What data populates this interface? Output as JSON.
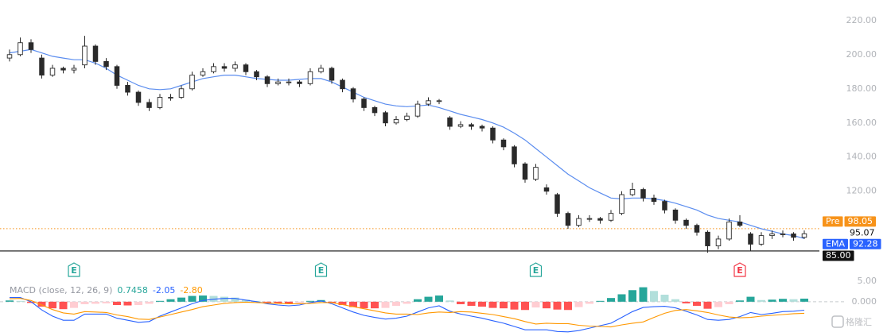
{
  "chart_data": [
    {
      "type": "candlestick",
      "ohlc": [
        [
          198,
          203,
          196,
          200
        ],
        [
          200,
          210,
          199,
          207
        ],
        [
          207,
          209,
          201,
          203
        ],
        [
          198,
          200,
          186,
          188
        ],
        [
          188,
          194,
          187,
          192
        ],
        [
          192,
          193,
          189,
          191
        ],
        [
          191,
          194,
          189,
          192
        ],
        [
          194,
          211,
          192,
          205
        ],
        [
          205,
          206,
          194,
          196
        ],
        [
          196,
          198,
          191,
          193
        ],
        [
          193,
          194,
          180,
          182
        ],
        [
          182,
          184,
          176,
          178
        ],
        [
          178,
          179,
          170,
          172
        ],
        [
          172,
          174,
          167,
          169
        ],
        [
          169,
          177,
          168,
          175
        ],
        [
          175,
          177,
          173,
          175
        ],
        [
          175,
          182,
          174,
          180
        ],
        [
          180,
          190,
          179,
          188
        ],
        [
          188,
          192,
          187,
          190
        ],
        [
          190,
          195,
          189,
          193
        ],
        [
          193,
          195,
          190,
          192
        ],
        [
          192,
          196,
          190,
          194
        ],
        [
          194,
          195,
          188,
          190
        ],
        [
          190,
          191,
          185,
          187
        ],
        [
          187,
          188,
          181,
          183
        ],
        [
          183,
          186,
          182,
          184
        ],
        [
          184,
          186,
          182,
          184
        ],
        [
          184,
          185,
          181,
          183
        ],
        [
          183,
          192,
          182,
          190
        ],
        [
          190,
          194,
          189,
          192
        ],
        [
          192,
          193,
          183,
          185
        ],
        [
          185,
          186,
          178,
          180
        ],
        [
          180,
          181,
          172,
          174
        ],
        [
          174,
          175,
          167,
          169
        ],
        [
          169,
          170,
          164,
          166
        ],
        [
          166,
          167,
          158,
          160
        ],
        [
          160,
          164,
          159,
          162
        ],
        [
          162,
          166,
          161,
          164
        ],
        [
          164,
          173,
          163,
          171
        ],
        [
          171,
          175,
          170,
          173
        ],
        [
          173,
          174,
          171,
          173
        ],
        [
          163,
          164,
          156,
          158
        ],
        [
          158,
          161,
          157,
          159
        ],
        [
          159,
          160,
          156,
          158
        ],
        [
          158,
          159,
          155,
          157
        ],
        [
          157,
          158,
          148,
          150
        ],
        [
          150,
          151,
          144,
          146
        ],
        [
          146,
          147,
          134,
          136
        ],
        [
          136,
          137,
          125,
          127
        ],
        [
          127,
          136,
          126,
          134
        ],
        [
          122,
          124,
          118,
          120
        ],
        [
          118,
          119,
          105,
          107
        ],
        [
          107,
          108,
          98,
          100
        ],
        [
          100,
          106,
          99,
          104
        ],
        [
          104,
          106,
          102,
          104
        ],
        [
          104,
          105,
          101,
          103
        ],
        [
          103,
          109,
          102,
          107
        ],
        [
          107,
          120,
          106,
          118
        ],
        [
          118,
          125,
          117,
          121
        ],
        [
          121,
          122,
          114,
          116
        ],
        [
          116,
          118,
          112,
          114
        ],
        [
          114,
          115,
          107,
          109
        ],
        [
          109,
          110,
          101,
          103
        ],
        [
          103,
          104,
          98,
          100
        ],
        [
          100,
          101,
          94,
          96
        ],
        [
          96,
          97,
          84,
          88
        ],
        [
          88,
          94,
          86,
          92
        ],
        [
          92,
          104,
          91,
          102
        ],
        [
          102,
          106,
          99,
          100
        ],
        [
          95,
          96,
          85,
          89
        ],
        [
          89,
          96,
          88,
          94
        ],
        [
          94,
          97,
          92,
          95
        ],
        [
          95,
          97,
          93,
          95
        ],
        [
          95,
          96,
          91,
          93
        ],
        [
          93,
          97,
          92,
          95.07
        ]
      ],
      "up_color": "#ffffff",
      "down_color": "#2a2a2a",
      "outline_color": "#2a2a2a",
      "series": [
        {
          "name": "EMA",
          "color": "#5b8def",
          "values": [
            201,
            202,
            203,
            201,
            199,
            198,
            197,
            197,
            195,
            192,
            188,
            185,
            182,
            180,
            179.5,
            180,
            182,
            184,
            186,
            187,
            188,
            188,
            187,
            186,
            185.5,
            185,
            185,
            185.5,
            186,
            186,
            184,
            181,
            178,
            175,
            173,
            171,
            170,
            169.5,
            170,
            170.5,
            169,
            167,
            165,
            163.5,
            162,
            160,
            157.5,
            154,
            150,
            145,
            140,
            135,
            130,
            126,
            122,
            119,
            116,
            115.5,
            116,
            116,
            115.5,
            114.5,
            113,
            111,
            109,
            106,
            104,
            103,
            102,
            100,
            98,
            96.5,
            95,
            94,
            92.28
          ]
        }
      ],
      "price_lines": [
        {
          "label": "Pre",
          "value": 98.05,
          "color": "#f7931a",
          "style": "dotted"
        },
        {
          "value": 85,
          "label": "85.00",
          "color": "#111111",
          "style": "solid"
        }
      ],
      "events": [
        {
          "label": "E",
          "candle": 6,
          "color": "#26a69a"
        },
        {
          "label": "E",
          "candle": 29,
          "color": "#26a69a"
        },
        {
          "label": "E",
          "candle": 49,
          "color": "#26a69a"
        },
        {
          "label": "E",
          "candle": 68,
          "color": "#f23645"
        }
      ],
      "ylim": [
        78,
        232
      ],
      "yticks": [
        {
          "value": 120,
          "label": "120.00"
        },
        {
          "value": 140,
          "label": "140.00"
        },
        {
          "value": 160,
          "label": "160.00"
        },
        {
          "value": 180,
          "label": "180.00"
        },
        {
          "value": 200,
          "label": "200.00"
        },
        {
          "value": 220,
          "label": "220.00"
        }
      ]
    },
    {
      "type": "macd",
      "title": "MACD (close, 12, 26, 9)",
      "histogram": [
        0.3,
        0.2,
        -0.3,
        -1.2,
        -1.6,
        -1.8,
        -1.5,
        -0.6,
        -0.5,
        -0.4,
        -0.8,
        -0.9,
        -0.8,
        -0.5,
        0.2,
        0.6,
        1.0,
        1.4,
        1.5,
        1.4,
        1.2,
        1.0,
        0.5,
        0.2,
        -0.2,
        -0.4,
        -0.5,
        -0.3,
        0.2,
        0.4,
        -0.3,
        -0.8,
        -1.3,
        -1.6,
        -1.6,
        -1.5,
        -1.0,
        -0.5,
        0.6,
        1.2,
        1.5,
        0.3,
        -0.6,
        -1.0,
        -1.2,
        -1.5,
        -1.6,
        -1.9,
        -2.0,
        -1.4,
        -1.6,
        -1.9,
        -2.0,
        -1.3,
        -0.5,
        0.2,
        0.9,
        1.8,
        2.8,
        3.5,
        2.6,
        1.7,
        0.6,
        -0.4,
        -1.0,
        -1.7,
        -1.3,
        -0.6,
        0.3,
        1.2,
        0.4,
        0.5,
        0.7,
        0.6,
        0.7458
      ],
      "hist_colors": [
        "#26a69a",
        "#b2dfdb",
        "#ff5252",
        "#ffcdd2"
      ],
      "series": [
        {
          "color": "#2962ff",
          "values": [
            1,
            1,
            0,
            -2,
            -3.5,
            -4.5,
            -4.5,
            -3,
            -3,
            -3,
            -4,
            -4.5,
            -5,
            -4.8,
            -3.5,
            -2.5,
            -1.5,
            -0.5,
            0.3,
            0.6,
            0.8,
            0.8,
            0.4,
            0,
            -0.5,
            -0.8,
            -1,
            -0.8,
            -0.2,
            0.2,
            -0.5,
            -1.5,
            -2.5,
            -3.3,
            -3.8,
            -4.2,
            -4,
            -3.5,
            -2.5,
            -1.5,
            -1,
            -2.3,
            -3,
            -3.5,
            -4,
            -4.6,
            -5.2,
            -6,
            -6.8,
            -6.8,
            -6.8,
            -7.2,
            -7.3,
            -7,
            -6.4,
            -5.8,
            -5.2,
            -3.8,
            -2.4,
            -1.4,
            -1.2,
            -1.1,
            -1.5,
            -2.3,
            -3.2,
            -4.3,
            -4.5,
            -4.3,
            -3.6,
            -2.6,
            -3.1,
            -2.8,
            -2.4,
            -2.3,
            -2.05
          ]
        },
        {
          "color": "#ff9800",
          "values": [
            0.7,
            0.8,
            0.3,
            -0.8,
            -1.9,
            -2.7,
            -3,
            -2.4,
            -2.5,
            -2.6,
            -3.2,
            -3.6,
            -4.2,
            -4.3,
            -3.7,
            -3.1,
            -2.5,
            -1.9,
            -1.2,
            -0.8,
            -0.4,
            -0.2,
            -0.1,
            -0.2,
            -0.3,
            -0.4,
            -0.5,
            -0.5,
            -0.4,
            -0.2,
            -0.2,
            -0.7,
            -1.2,
            -1.7,
            -2.2,
            -2.7,
            -3,
            -3,
            -3.1,
            -2.7,
            -2.5,
            -2.6,
            -2.4,
            -2.5,
            -2.8,
            -3.1,
            -3.6,
            -4.1,
            -4.8,
            -5.4,
            -5.2,
            -5.3,
            -5.3,
            -5.7,
            -5.9,
            -6,
            -6.1,
            -5.6,
            -5.2,
            -4.9,
            -3.8,
            -2.8,
            -2.1,
            -1.9,
            -2.2,
            -2.6,
            -3.2,
            -3.7,
            -3.9,
            -3.8,
            -3.5,
            -3.3,
            -3.1,
            -2.9,
            -2.8
          ]
        }
      ],
      "legend_labels": [
        {
          "text": "0.7458",
          "color": "#26a69a"
        },
        {
          "text": "-2.05",
          "color": "#2962ff"
        },
        {
          "text": "-2.80",
          "color": "#ff9800"
        }
      ],
      "ylim": [
        -8.3,
        6.7
      ],
      "yticks": [
        {
          "value": 0,
          "label": "0.000"
        },
        {
          "value": 5,
          "label": "5.00"
        }
      ]
    }
  ],
  "watermark": "格隆汇"
}
